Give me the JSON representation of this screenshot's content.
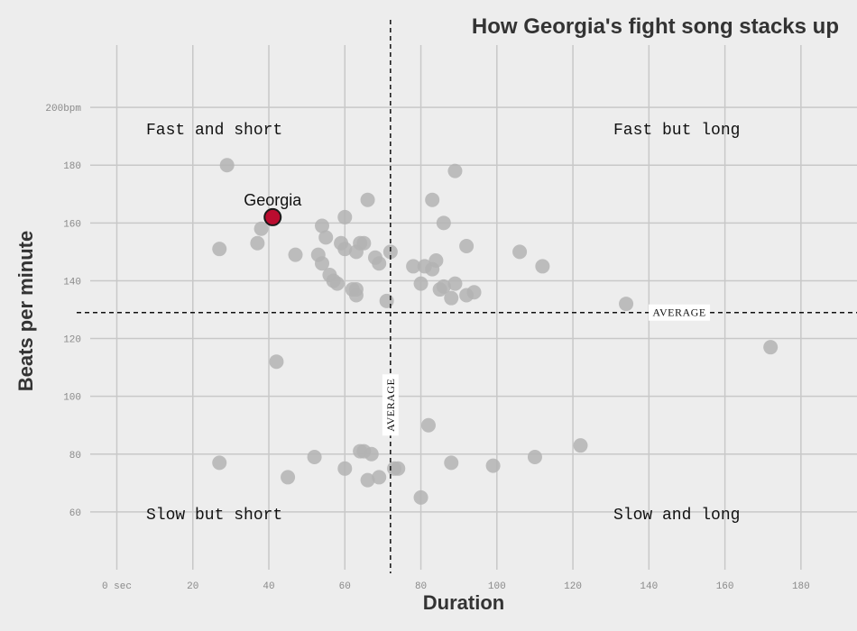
{
  "chart_data": {
    "type": "scatter",
    "title": "How Georgia's fight song stacks up",
    "xlabel": "Duration",
    "ylabel": "Beats per minute",
    "xlim": [
      -7,
      190
    ],
    "ylim": [
      40,
      220
    ],
    "x_ticks": [
      {
        "value": 0,
        "label": "0 sec"
      },
      {
        "value": 20,
        "label": "20"
      },
      {
        "value": 40,
        "label": "40"
      },
      {
        "value": 60,
        "label": "60"
      },
      {
        "value": 80,
        "label": "80"
      },
      {
        "value": 100,
        "label": "100"
      },
      {
        "value": 120,
        "label": "120"
      },
      {
        "value": 140,
        "label": "140"
      },
      {
        "value": 160,
        "label": "160"
      },
      {
        "value": 180,
        "label": "180"
      }
    ],
    "y_ticks": [
      {
        "value": 60,
        "label": "60"
      },
      {
        "value": 80,
        "label": "80"
      },
      {
        "value": 100,
        "label": "100"
      },
      {
        "value": 120,
        "label": "120"
      },
      {
        "value": 140,
        "label": "140"
      },
      {
        "value": 160,
        "label": "160"
      },
      {
        "value": 180,
        "label": "180"
      },
      {
        "value": 200,
        "label": "200bpm"
      }
    ],
    "grid": true,
    "average_x": 72,
    "average_y": 129,
    "average_label": "AVERAGE",
    "quadrant_labels": {
      "top_left": "Fast and short",
      "top_right": "Fast but long",
      "bottom_left": "Slow but short",
      "bottom_right": "Slow and long"
    },
    "highlight": {
      "name": "Georgia",
      "x": 41,
      "y": 162,
      "color": "#ba0c2f"
    },
    "point_color": "#b3b3b3",
    "points": [
      [
        29,
        180
      ],
      [
        27,
        151
      ],
      [
        37,
        153
      ],
      [
        38,
        158
      ],
      [
        47,
        149
      ],
      [
        54,
        159
      ],
      [
        55,
        155
      ],
      [
        53,
        149
      ],
      [
        54,
        146
      ],
      [
        56,
        142
      ],
      [
        57,
        140
      ],
      [
        58,
        139
      ],
      [
        59,
        153
      ],
      [
        60,
        151
      ],
      [
        60,
        162
      ],
      [
        63,
        150
      ],
      [
        64,
        153
      ],
      [
        65,
        153
      ],
      [
        62,
        137
      ],
      [
        63,
        137
      ],
      [
        63,
        135
      ],
      [
        68,
        148
      ],
      [
        69,
        146
      ],
      [
        66,
        168
      ],
      [
        71,
        133
      ],
      [
        72,
        150
      ],
      [
        78,
        145
      ],
      [
        81,
        145
      ],
      [
        83,
        144
      ],
      [
        84,
        147
      ],
      [
        80,
        139
      ],
      [
        85,
        137
      ],
      [
        86,
        138
      ],
      [
        88,
        134
      ],
      [
        89,
        139
      ],
      [
        83,
        168
      ],
      [
        86,
        160
      ],
      [
        89,
        178
      ],
      [
        92,
        152
      ],
      [
        92,
        135
      ],
      [
        94,
        136
      ],
      [
        106,
        150
      ],
      [
        112,
        145
      ],
      [
        134,
        132
      ],
      [
        172,
        117
      ],
      [
        42,
        112
      ],
      [
        82,
        90
      ],
      [
        27,
        77
      ],
      [
        45,
        72
      ],
      [
        52,
        79
      ],
      [
        60,
        75
      ],
      [
        64,
        81
      ],
      [
        65,
        81
      ],
      [
        67,
        80
      ],
      [
        66,
        71
      ],
      [
        69,
        72
      ],
      [
        73,
        75
      ],
      [
        74,
        75
      ],
      [
        80,
        65
      ],
      [
        88,
        77
      ],
      [
        99,
        76
      ],
      [
        110,
        79
      ],
      [
        122,
        83
      ]
    ]
  }
}
